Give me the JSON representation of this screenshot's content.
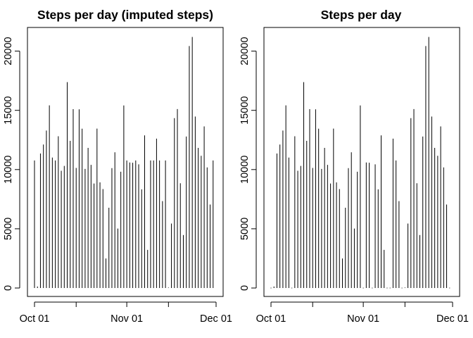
{
  "chart_data": [
    {
      "type": "bar",
      "style": "histogram-spikes",
      "title": "Steps per day (imputed steps)",
      "xlabel": "",
      "ylabel": "",
      "x_start": "2012-10-01",
      "x_ticks": [
        "Oct 01",
        "Nov 01",
        "Dec 01"
      ],
      "y_ticks": [
        "0",
        "5000",
        "10000",
        "15000",
        "20000"
      ],
      "ylim": [
        0,
        21194
      ],
      "grid": false,
      "values": [
        10766,
        126,
        11352,
        12116,
        13294,
        15420,
        11015,
        10766,
        12811,
        9900,
        10304,
        17382,
        12426,
        15098,
        10139,
        15084,
        13452,
        10056,
        11829,
        10395,
        8821,
        13460,
        8918,
        8355,
        2492,
        6778,
        10119,
        11458,
        5018,
        9819,
        15414,
        10766,
        10600,
        10571,
        10766,
        10439,
        8334,
        12883,
        3219,
        10766,
        10766,
        12608,
        10765,
        7336,
        10766,
        41,
        5441,
        14339,
        15110,
        8841,
        4472,
        12787,
        20427,
        21194,
        14478,
        11834,
        11162,
        13646,
        10183,
        7047,
        10766
      ]
    },
    {
      "type": "bar",
      "style": "histogram-spikes",
      "title": "Steps per day",
      "xlabel": "",
      "ylabel": "",
      "x_start": "2012-10-01",
      "x_ticks": [
        "Oct 01",
        "Nov 01",
        "Dec 01"
      ],
      "y_ticks": [
        "0",
        "5000",
        "10000",
        "15000",
        "20000"
      ],
      "ylim": [
        0,
        21194
      ],
      "grid": false,
      "values": [
        0,
        126,
        11352,
        12116,
        13294,
        15420,
        11015,
        0,
        12811,
        9900,
        10304,
        17382,
        12426,
        15098,
        10139,
        15084,
        13452,
        10056,
        11829,
        10395,
        8821,
        13460,
        8918,
        8355,
        2492,
        6778,
        10119,
        11458,
        5018,
        9819,
        15414,
        0,
        10600,
        10571,
        0,
        10439,
        8334,
        12883,
        3219,
        0,
        0,
        12608,
        10765,
        7336,
        0,
        41,
        5441,
        14339,
        15110,
        8841,
        4472,
        12787,
        20427,
        21194,
        14478,
        11834,
        11162,
        13646,
        10183,
        7047,
        0
      ]
    }
  ]
}
